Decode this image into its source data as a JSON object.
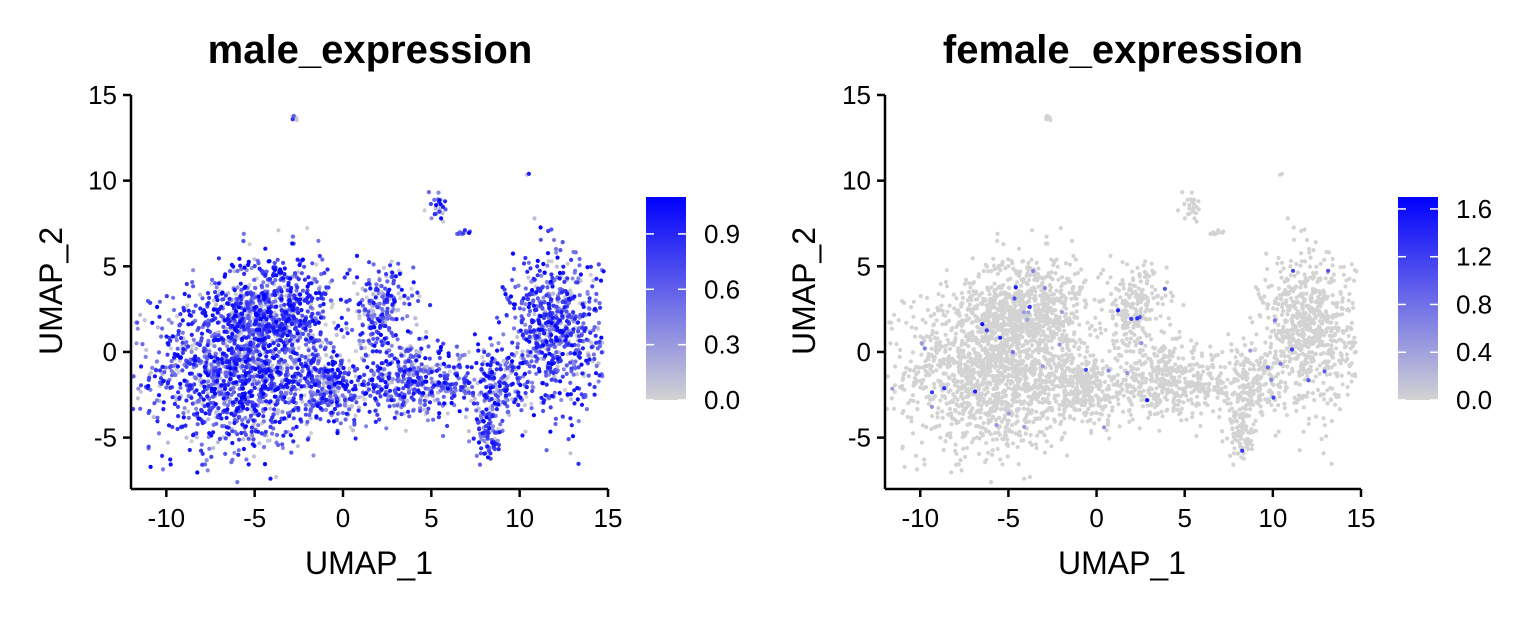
{
  "chart_data": [
    {
      "type": "scatter",
      "title": "male_expression",
      "xlabel": "UMAP_1",
      "ylabel": "UMAP_2",
      "xlim": [
        -12,
        15
      ],
      "ylim": [
        -8,
        15
      ],
      "x_ticks": [
        -10,
        -5,
        0,
        5,
        10,
        15
      ],
      "x_tick_labels": [
        "-10",
        "-5",
        "0",
        "5",
        "10",
        "15"
      ],
      "y_ticks": [
        -5,
        0,
        5,
        10,
        15
      ],
      "y_tick_labels": [
        "-5",
        "0",
        "5",
        "10",
        "15"
      ],
      "grid": false,
      "color_scale": {
        "low_color": "#d3d3d3",
        "high_color": "#0000ff",
        "min": 0.0,
        "max": 1.1,
        "ticks": [
          0.0,
          0.3,
          0.6,
          0.9
        ],
        "tick_labels": [
          "0.0",
          "0.3",
          "0.6",
          "0.9"
        ]
      },
      "expression_profile": "broad",
      "clusters": [
        {
          "x": -6.0,
          "y": -1.0,
          "sx": 2.4,
          "sy": 2.4,
          "n": 1400
        },
        {
          "x": -3.8,
          "y": 2.5,
          "sx": 1.6,
          "sy": 1.6,
          "n": 650
        },
        {
          "x": -1.0,
          "y": -2.2,
          "sx": 1.5,
          "sy": 1.1,
          "n": 350
        },
        {
          "x": 2.2,
          "y": 2.5,
          "sx": 0.9,
          "sy": 1.3,
          "n": 220
        },
        {
          "x": 4.0,
          "y": -1.8,
          "sx": 1.9,
          "sy": 1.0,
          "n": 420
        },
        {
          "x": 8.6,
          "y": -2.0,
          "sx": 1.1,
          "sy": 1.0,
          "n": 200
        },
        {
          "x": 12.0,
          "y": 1.2,
          "sx": 1.3,
          "sy": 2.2,
          "n": 720
        },
        {
          "x": 8.2,
          "y": -4.8,
          "sx": 0.35,
          "sy": 0.7,
          "n": 80
        },
        {
          "x": 5.4,
          "y": 8.6,
          "sx": 0.3,
          "sy": 0.5,
          "n": 25
        },
        {
          "x": 6.8,
          "y": 6.9,
          "sx": 0.25,
          "sy": 0.2,
          "n": 10
        },
        {
          "x": -2.7,
          "y": 13.6,
          "sx": 0.12,
          "sy": 0.12,
          "n": 5
        },
        {
          "x": 10.4,
          "y": 10.4,
          "sx": 0.06,
          "sy": 0.06,
          "n": 2
        }
      ]
    },
    {
      "type": "scatter",
      "title": "female_expression",
      "xlabel": "UMAP_1",
      "ylabel": "UMAP_2",
      "xlim": [
        -12,
        15
      ],
      "ylim": [
        -8,
        15
      ],
      "x_ticks": [
        -10,
        -5,
        0,
        5,
        10,
        15
      ],
      "x_tick_labels": [
        "-10",
        "-5",
        "0",
        "5",
        "10",
        "15"
      ],
      "y_ticks": [
        -5,
        0,
        5,
        10,
        15
      ],
      "y_tick_labels": [
        "-5",
        "0",
        "5",
        "10",
        "15"
      ],
      "grid": false,
      "color_scale": {
        "low_color": "#d3d3d3",
        "high_color": "#0000ff",
        "min": 0.0,
        "max": 1.7,
        "ticks": [
          0.0,
          0.4,
          0.8,
          1.2,
          1.6
        ],
        "tick_labels": [
          "0.0",
          "0.4",
          "0.8",
          "1.2",
          "1.6"
        ]
      },
      "expression_profile": "sparse",
      "clusters": [
        {
          "x": -6.0,
          "y": -1.0,
          "sx": 2.4,
          "sy": 2.4,
          "n": 1400
        },
        {
          "x": -3.8,
          "y": 2.5,
          "sx": 1.6,
          "sy": 1.6,
          "n": 650
        },
        {
          "x": -1.0,
          "y": -2.2,
          "sx": 1.5,
          "sy": 1.1,
          "n": 350
        },
        {
          "x": 2.2,
          "y": 2.5,
          "sx": 0.9,
          "sy": 1.3,
          "n": 220
        },
        {
          "x": 4.0,
          "y": -1.8,
          "sx": 1.9,
          "sy": 1.0,
          "n": 420
        },
        {
          "x": 8.6,
          "y": -2.0,
          "sx": 1.1,
          "sy": 1.0,
          "n": 200
        },
        {
          "x": 12.0,
          "y": 1.2,
          "sx": 1.3,
          "sy": 2.2,
          "n": 720
        },
        {
          "x": 8.2,
          "y": -4.8,
          "sx": 0.35,
          "sy": 0.7,
          "n": 80
        },
        {
          "x": 5.4,
          "y": 8.6,
          "sx": 0.3,
          "sy": 0.5,
          "n": 25
        },
        {
          "x": 6.8,
          "y": 6.9,
          "sx": 0.25,
          "sy": 0.2,
          "n": 10
        },
        {
          "x": -2.7,
          "y": 13.6,
          "sx": 0.12,
          "sy": 0.12,
          "n": 5
        },
        {
          "x": 10.4,
          "y": 10.4,
          "sx": 0.06,
          "sy": 0.06,
          "n": 2
        }
      ]
    }
  ]
}
